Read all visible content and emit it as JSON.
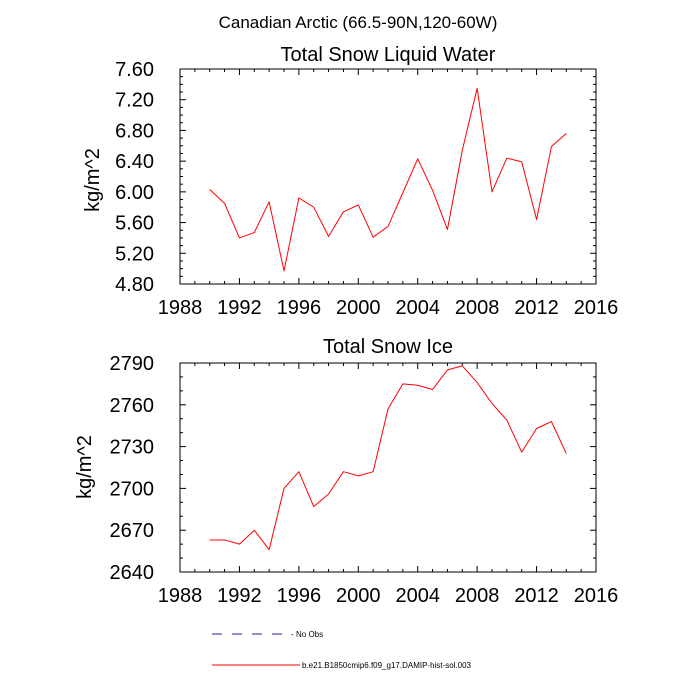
{
  "figure_title": "Canadian Arctic (66.5-90N,120-60W)",
  "colors": {
    "model_line": "#ff0000",
    "obs_line": "#2020b0",
    "axis": "#000000"
  },
  "legend": {
    "obs_label": "No Obs",
    "model_label": "b.e21.B1850cmip6.f09_g17.DAMIP-hist-sol.003"
  },
  "chart_data": [
    {
      "type": "line",
      "title": "Total Snow Liquid Water",
      "xlabel": "",
      "ylabel": "kg/m^2",
      "xlim": [
        1988,
        2016
      ],
      "ylim": [
        4.8,
        7.6
      ],
      "xticks": [
        "1988",
        "1992",
        "1996",
        "2000",
        "2004",
        "2008",
        "2012",
        "2016"
      ],
      "yticks": [
        "4.80",
        "5.20",
        "5.60",
        "6.00",
        "6.40",
        "6.80",
        "7.20",
        "7.60"
      ],
      "grid": false,
      "x": [
        1990,
        1991,
        1992,
        1993,
        1994,
        1995,
        1996,
        1997,
        1998,
        1999,
        2000,
        2001,
        2002,
        2003,
        2004,
        2005,
        2006,
        2007,
        2008,
        2009,
        2010,
        2011,
        2012,
        2013,
        2014
      ],
      "series": [
        {
          "name": "b.e21.B1850cmip6.f09_g17.DAMIP-hist-sol.003",
          "values": [
            6.03,
            5.85,
            5.4,
            5.47,
            5.87,
            4.97,
            5.92,
            5.8,
            5.42,
            5.74,
            5.83,
            5.41,
            5.55,
            5.99,
            6.43,
            6.02,
            5.51,
            6.54,
            7.35,
            6.0,
            6.44,
            6.39,
            5.64,
            6.59,
            6.76
          ]
        }
      ]
    },
    {
      "type": "line",
      "title": "Total Snow Ice",
      "xlabel": "",
      "ylabel": "kg/m^2",
      "xlim": [
        1988,
        2016
      ],
      "ylim": [
        2640,
        2790
      ],
      "xticks": [
        "1988",
        "1992",
        "1996",
        "2000",
        "2004",
        "2008",
        "2012",
        "2016"
      ],
      "yticks": [
        "2640",
        "2670",
        "2700",
        "2730",
        "2760",
        "2790"
      ],
      "grid": false,
      "x": [
        1990,
        1991,
        1992,
        1993,
        1994,
        1995,
        1996,
        1997,
        1998,
        1999,
        2000,
        2001,
        2002,
        2003,
        2004,
        2005,
        2006,
        2007,
        2008,
        2009,
        2010,
        2011,
        2012,
        2013,
        2014
      ],
      "series": [
        {
          "name": "b.e21.B1850cmip6.f09_g17.DAMIP-hist-sol.003",
          "values": [
            2663,
            2663,
            2660,
            2670,
            2656,
            2700,
            2712,
            2687,
            2696,
            2712,
            2709,
            2712,
            2757,
            2775,
            2774,
            2771,
            2785,
            2788,
            2776,
            2761,
            2749,
            2726,
            2743,
            2748,
            2725
          ]
        }
      ]
    }
  ]
}
